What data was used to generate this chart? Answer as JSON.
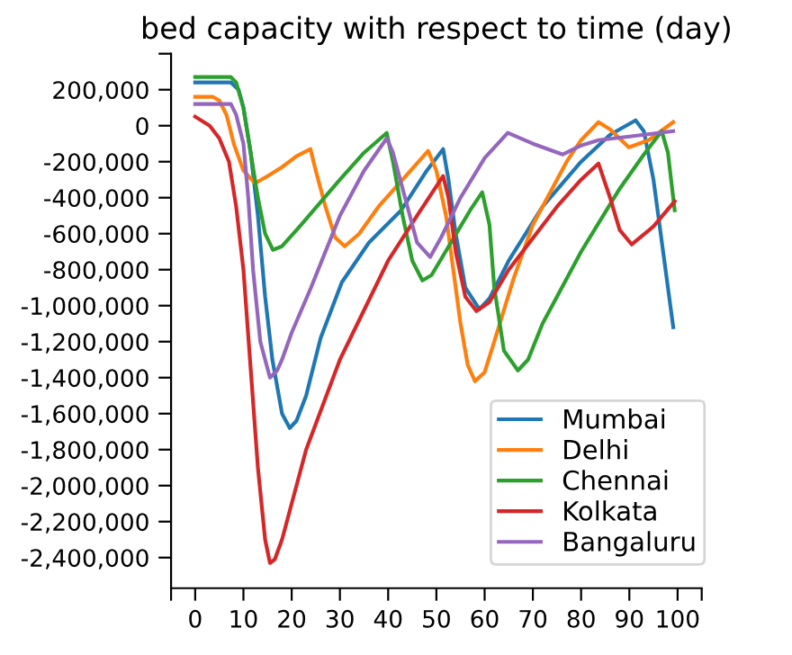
{
  "chart_data": {
    "type": "line",
    "title": "bed capacity with respect to time (day)",
    "xlim": [
      -5,
      105
    ],
    "ylim": [
      -2570000,
      400000
    ],
    "xticks": [
      {
        "value": -5,
        "label": null
      },
      0,
      10,
      20,
      30,
      40,
      50,
      60,
      70,
      80,
      90,
      100,
      {
        "value": 105,
        "label": null
      }
    ],
    "yticks": [
      {
        "value": -2400000,
        "label": "-2,400,000"
      },
      {
        "value": -2200000,
        "label": "-2,200,000"
      },
      {
        "value": -2000000,
        "label": "-2,000,000"
      },
      {
        "value": -1800000,
        "label": "-1,800,000"
      },
      {
        "value": -1600000,
        "label": "-1,600,000"
      },
      {
        "value": -1400000,
        "label": "-1,400,000"
      },
      {
        "value": -1200000,
        "label": "-1,200,000"
      },
      {
        "value": -1000000,
        "label": "-1,000,000"
      },
      {
        "value": -800000,
        "label": "-800,000"
      },
      {
        "value": -600000,
        "label": "-600,000"
      },
      {
        "value": -400000,
        "label": "-400,000"
      },
      {
        "value": -200000,
        "label": "-200,000"
      },
      0,
      {
        "value": 200000,
        "label": "200,000"
      },
      {
        "value": 400000,
        "label": null
      }
    ],
    "grid": false,
    "legend": "bottom right",
    "marker": "none",
    "line_style": "solid",
    "series": [
      {
        "name": "Mumbai",
        "color": "#1f77b4",
        "x": [
          0,
          7.4,
          9,
          10,
          11.5,
          13,
          14.5,
          16,
          18,
          19.6,
          21,
          23,
          26,
          30.4,
          36,
          42.7,
          48,
          51.4,
          52.5,
          54,
          56,
          58.9,
          61,
          65,
          72,
          80,
          86,
          91.3,
          93,
          95,
          97,
          99.1
        ],
        "values": [
          240000,
          240000,
          200000,
          100000,
          -150000,
          -500000,
          -950000,
          -1300000,
          -1600000,
          -1680000,
          -1640000,
          -1500000,
          -1180000,
          -870000,
          -650000,
          -470000,
          -250000,
          -130000,
          -300000,
          -600000,
          -900000,
          -1020000,
          -960000,
          -750000,
          -450000,
          -200000,
          -50000,
          30000,
          -30000,
          -300000,
          -700000,
          -1120000
        ]
      },
      {
        "name": "Delhi",
        "color": "#ff7f0e",
        "x": [
          0,
          3.7,
          5,
          6.5,
          8,
          10,
          12.4,
          15,
          18,
          21,
          23.9,
          25,
          27,
          29,
          31,
          34,
          38,
          43,
          48.3,
          50,
          52,
          53.5,
          55,
          56.5,
          58,
          60,
          62,
          66,
          70,
          77,
          80,
          83.6,
          86,
          89.9,
          94,
          99.1
        ],
        "values": [
          160000,
          160000,
          140000,
          60000,
          -100000,
          -250000,
          -320000,
          -280000,
          -230000,
          -170000,
          -130000,
          -250000,
          -450000,
          -620000,
          -670000,
          -600000,
          -450000,
          -300000,
          -140000,
          -250000,
          -500000,
          -800000,
          -1100000,
          -1330000,
          -1420000,
          -1370000,
          -1200000,
          -850000,
          -550000,
          -200000,
          -80000,
          20000,
          -20000,
          -120000,
          -80000,
          20000
        ]
      },
      {
        "name": "Chennai",
        "color": "#2ca02c",
        "x": [
          0,
          7.4,
          8.5,
          10,
          11.5,
          13,
          14.5,
          16.1,
          18,
          22,
          30,
          35,
          39.7,
          41,
          43,
          45,
          47.1,
          49,
          53,
          57,
          59.5,
          61,
          62,
          64,
          66.9,
          69,
          72,
          80,
          88,
          93,
          96.7,
          98,
          99.4
        ],
        "values": [
          270000,
          270000,
          240000,
          100000,
          -150000,
          -400000,
          -600000,
          -690000,
          -670000,
          -550000,
          -300000,
          -150000,
          -40000,
          -200000,
          -500000,
          -750000,
          -860000,
          -830000,
          -650000,
          -470000,
          -370000,
          -550000,
          -900000,
          -1250000,
          -1360000,
          -1300000,
          -1100000,
          -700000,
          -350000,
          -160000,
          -30000,
          -150000,
          -470000
        ]
      },
      {
        "name": "Kolkata",
        "color": "#d62728",
        "x": [
          0,
          3,
          5,
          7,
          8.5,
          10,
          11.5,
          13,
          14.5,
          15.5,
          16.5,
          18,
          20,
          23,
          30,
          40,
          46,
          51.4,
          52.5,
          54,
          56,
          58.3,
          61,
          65,
          75,
          80,
          83.6,
          86,
          88,
          90.5,
          95,
          99.4
        ],
        "values": [
          50000,
          0,
          -70000,
          -200000,
          -450000,
          -800000,
          -1350000,
          -1900000,
          -2300000,
          -2430000,
          -2410000,
          -2300000,
          -2100000,
          -1800000,
          -1300000,
          -750000,
          -500000,
          -280000,
          -400000,
          -700000,
          -950000,
          -1030000,
          -980000,
          -800000,
          -450000,
          -300000,
          -210000,
          -400000,
          -580000,
          -660000,
          -560000,
          -420000
        ]
      },
      {
        "name": "Bangaluru",
        "color": "#9467bd",
        "x": [
          0,
          7.4,
          8.5,
          10,
          11,
          12,
          13.5,
          15.5,
          17,
          18,
          20,
          24,
          30,
          35,
          39.7,
          41,
          44,
          46,
          48.7,
          51,
          55,
          60,
          64.8,
          70,
          76.2,
          80,
          83.6,
          90,
          99.1
        ],
        "values": [
          120000,
          120000,
          60000,
          -100000,
          -400000,
          -800000,
          -1200000,
          -1400000,
          -1360000,
          -1300000,
          -1150000,
          -900000,
          -500000,
          -250000,
          -70000,
          -150000,
          -450000,
          -650000,
          -730000,
          -620000,
          -400000,
          -180000,
          -40000,
          -100000,
          -160000,
          -110000,
          -80000,
          -60000,
          -30000
        ]
      }
    ]
  }
}
